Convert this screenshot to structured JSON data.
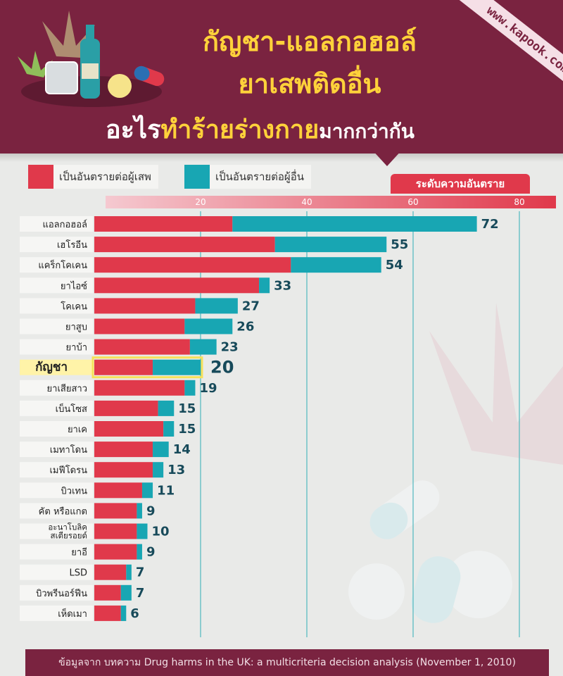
{
  "header": {
    "title_line1": "กัญชา-แอลกอฮอล์",
    "title_line2": "ยาเสพติดอื่น",
    "title_line3_a": "อะไร",
    "title_line3_b": "ทำร้ายร่างกาย",
    "title_line3_c": "มากกว่ากัน",
    "website": "www.kapook.com"
  },
  "legend": {
    "self_label": "เป็นอันตรายต่อผู้เสพ",
    "others_label": "เป็นอันตรายต่อผู้อื่น",
    "scale_title": "ระดับความอันตราย"
  },
  "colors": {
    "self": "#e0394b",
    "others": "#18a6b3",
    "header": "#7a2340",
    "highlight": "#fff3a8",
    "value_text": "#174a5a"
  },
  "chart_data": {
    "type": "bar",
    "orientation": "horizontal",
    "stacked": true,
    "xlim": [
      0,
      80
    ],
    "xticks": [
      20,
      40,
      60,
      80
    ],
    "grid": true,
    "xlabel": "ระดับความอันตราย",
    "series": [
      {
        "name": "เป็นอันตรายต่อผู้เสพ",
        "values": [
          26,
          34,
          37,
          31,
          19,
          17,
          18,
          11,
          17,
          12,
          13,
          11,
          11,
          9,
          8,
          8,
          8,
          6,
          5,
          5
        ]
      },
      {
        "name": "เป็นอันตรายต่อผู้อื่น",
        "values": [
          46,
          21,
          17,
          2,
          8,
          9,
          5,
          9,
          2,
          3,
          2,
          3,
          2,
          2,
          1,
          2,
          1,
          1,
          2,
          1
        ]
      }
    ],
    "categories": [
      "แอลกอฮอล์",
      "เฮโรอีน",
      "แคร็กโคเคน",
      "ยาไอซ์",
      "โคเคน",
      "ยาสูบ",
      "ยาบ้า",
      "กัญชา",
      "ยาเสียสาว",
      "เบ็นโซส",
      "ยาเค",
      "เมทาโดน",
      "เมฟีโดรน",
      "บิวเทน",
      "คัต หรือแกต",
      "อะนาโบลิค สเตียรอยด์",
      "ยาอี",
      "LSD",
      "บิวพรีนอร์ฟีน",
      "เห็ดเมา"
    ],
    "totals": [
      72,
      55,
      54,
      33,
      27,
      26,
      23,
      20,
      19,
      15,
      15,
      14,
      13,
      11,
      9,
      10,
      9,
      7,
      7,
      6
    ],
    "highlight_category": "กัญชา"
  },
  "footer": {
    "source": "ข้อมูลจาก บทความ Drug harms in the UK: a multicriteria decision analysis (November 1, 2010)"
  }
}
